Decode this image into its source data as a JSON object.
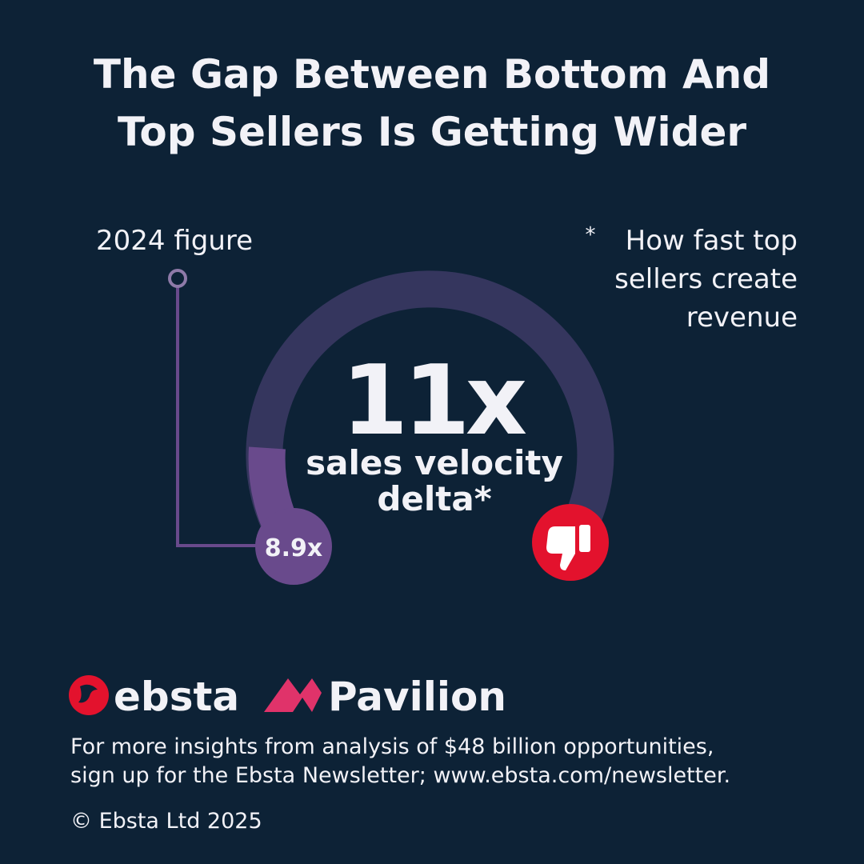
{
  "header": {
    "title_lines": [
      "The Gap Between Bottom And",
      "Top Sellers Is Getting Wider"
    ]
  },
  "gauge": {
    "figure_label": "2024 figure",
    "previous": "8.9x",
    "headline": "11x",
    "caption_lines": [
      "sales velocity",
      "delta*"
    ]
  },
  "note": {
    "marker": "*",
    "lines": [
      "How fast top",
      "sellers create",
      "revenue"
    ]
  },
  "logos": [
    "ebsta",
    "Pavilion"
  ],
  "footer": {
    "lines": [
      "For more insights from analysis of $48 billion opportunities,",
      "sign up for the Ebsta Newsletter; www.ebsta.com/newsletter."
    ],
    "copyright": "© Ebsta Ltd 2025"
  }
}
